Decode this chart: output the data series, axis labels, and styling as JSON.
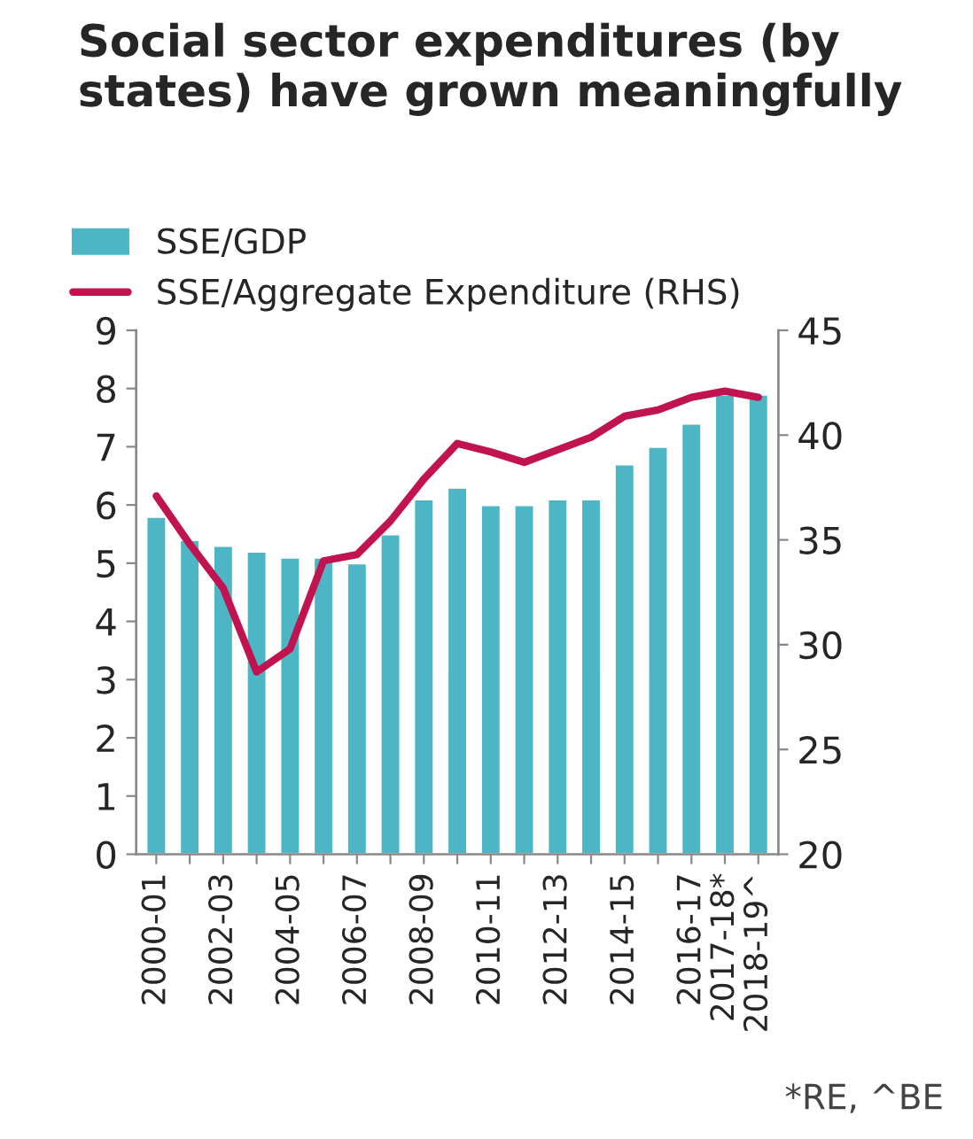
{
  "chart_data": {
    "type": "bar",
    "title": "Social sector expenditures (by states) have grown meaningfully",
    "categories": [
      "2000-01",
      null,
      "2002-03",
      null,
      "2004-05",
      null,
      "2006-07",
      null,
      "2008-09",
      null,
      "2010-11",
      null,
      "2012-13",
      null,
      "2014-15",
      null,
      "2016-17",
      "2017-18*",
      "2018-19^"
    ],
    "series": [
      {
        "name": "SSE/GDP",
        "color": "#4db6c4",
        "values": [
          5.8,
          5.4,
          5.3,
          5.2,
          5.1,
          5.1,
          5.0,
          5.5,
          6.1,
          6.3,
          6.0,
          6.0,
          6.1,
          6.1,
          6.7,
          7.0,
          7.4,
          7.9,
          7.9
        ]
      },
      {
        "name": "SSE/Aggregate Expenditure (RHS)",
        "type": "line",
        "axis": "y2",
        "color": "#c0134f",
        "values": [
          37.1,
          34.8,
          32.7,
          28.7,
          29.8,
          34.0,
          34.3,
          35.9,
          37.9,
          39.6,
          39.2,
          38.7,
          39.3,
          39.9,
          40.9,
          41.2,
          41.8,
          42.1,
          41.8
        ]
      }
    ],
    "ylim": [
      0,
      9
    ],
    "yticks": [
      0,
      1,
      2,
      3,
      4,
      5,
      6,
      7,
      8,
      9
    ],
    "y2lim": [
      20,
      45
    ],
    "y2ticks": [
      20,
      25,
      30,
      35,
      40,
      45
    ],
    "grid": false,
    "legend": "top left",
    "annotations": [
      "*RE, ^BE"
    ]
  }
}
